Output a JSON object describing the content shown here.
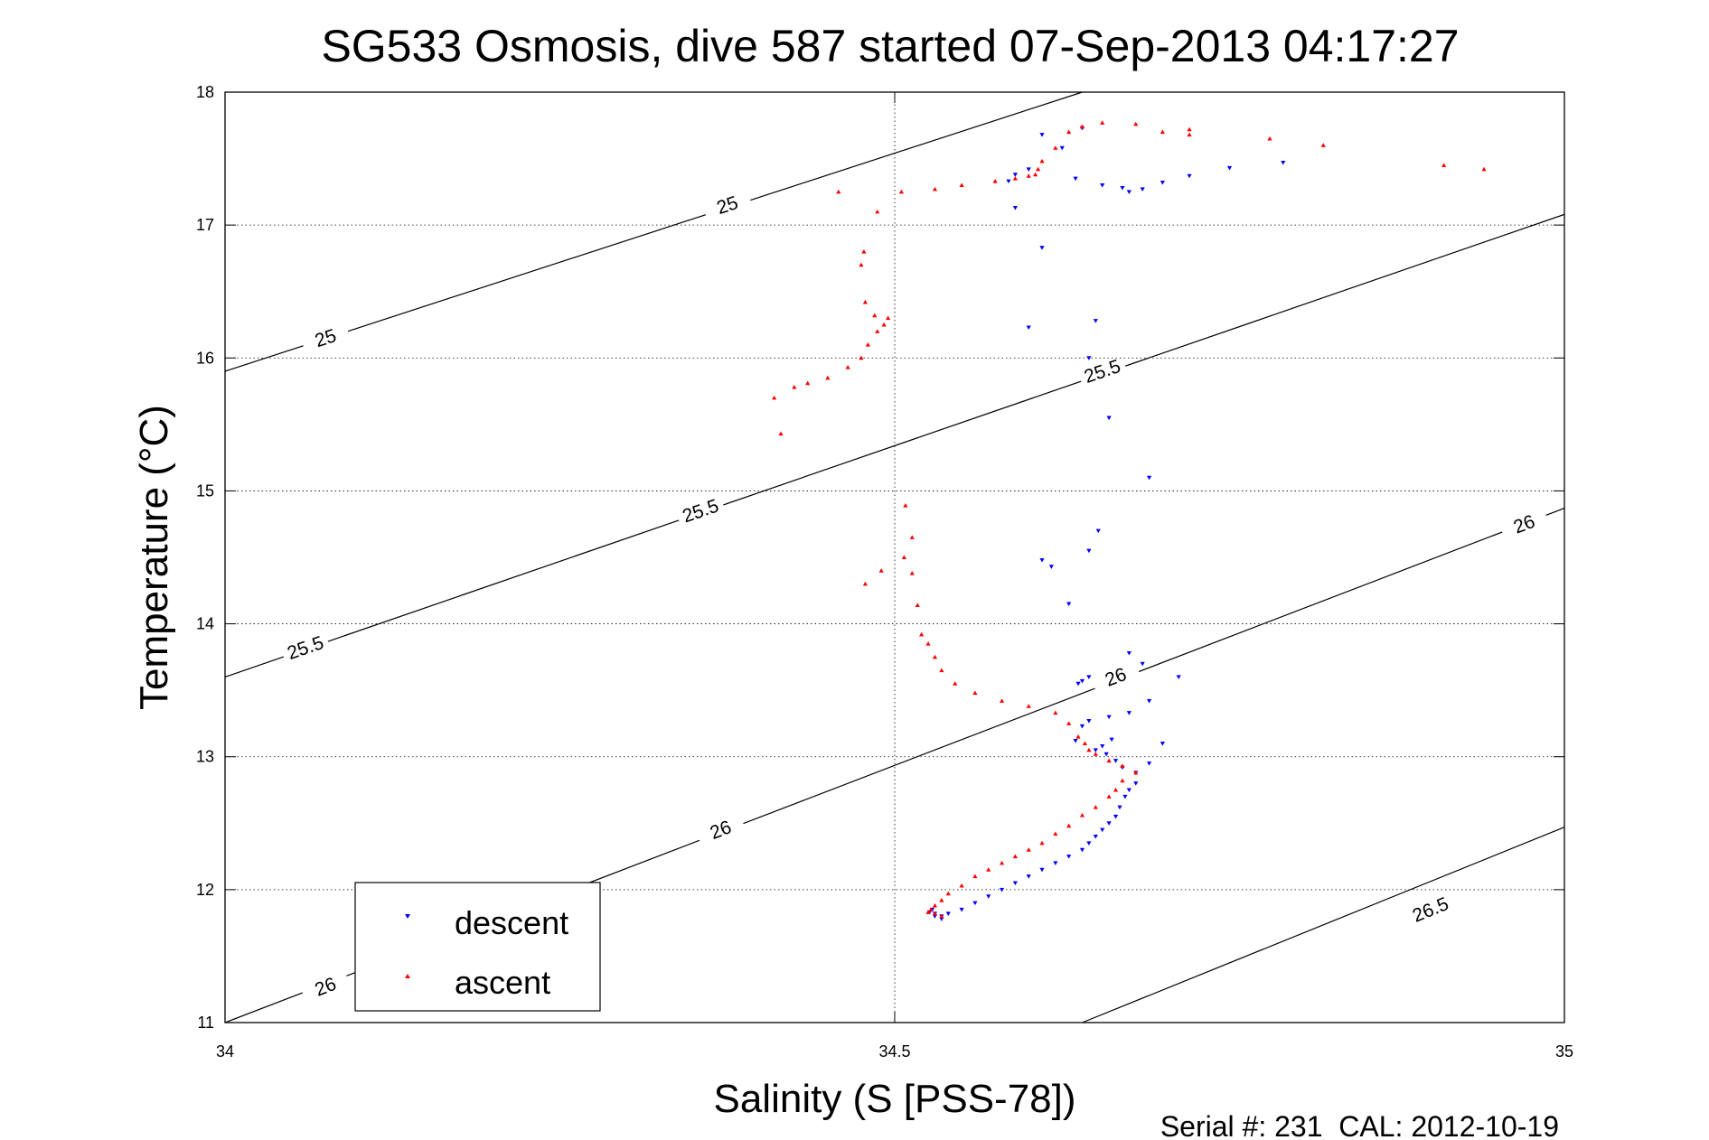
{
  "chart_data": {
    "type": "scatter",
    "title": "SG533 Osmosis, dive 587 started 07-Sep-2013 04:17:27",
    "xlabel": "Salinity (S [PSS-78])",
    "ylabel": "Temperature (°C)",
    "xlim": [
      34,
      35
    ],
    "ylim": [
      11,
      18
    ],
    "x_ticks": [
      "34",
      "34.5",
      "35"
    ],
    "y_ticks": [
      "11",
      "12",
      "13",
      "14",
      "15",
      "16",
      "17",
      "18"
    ],
    "grid": true,
    "legend_position": "bottom-left",
    "footer": "Serial #: 231  CAL: 2012-10-19",
    "contours": [
      {
        "level": "25",
        "lines": [
          [
            [
              34,
              15.9
            ],
            [
              34.64,
              18.0
            ]
          ]
        ],
        "labels": [
          [
            34.075,
            16.15
          ],
          [
            34.375,
            17.15
          ]
        ]
      },
      {
        "level": "25.5",
        "lines": [
          [
            [
              34,
              13.6
            ],
            [
              35,
              17.08
            ]
          ]
        ],
        "labels": [
          [
            34.06,
            13.82
          ],
          [
            34.355,
            14.85
          ],
          [
            34.655,
            15.9
          ]
        ]
      },
      {
        "level": "26",
        "lines": [
          [
            [
              34,
              11.0
            ],
            [
              35,
              14.87
            ]
          ]
        ],
        "labels": [
          [
            34.075,
            11.27
          ],
          [
            34.37,
            12.45
          ],
          [
            34.665,
            13.6
          ],
          [
            34.97,
            14.75
          ]
        ]
      },
      {
        "level": "26.5",
        "lines": [
          [
            [
              34.64,
              11.0
            ],
            [
              35,
              12.47
            ]
          ]
        ],
        "labels": [
          [
            34.9,
            11.85
          ]
        ]
      }
    ],
    "series": [
      {
        "name": "descent",
        "color": "#0000ff",
        "marker": "triangle-down",
        "x": [
          34.635,
          34.655,
          34.67,
          34.675,
          34.685,
          34.7,
          34.72,
          34.75,
          34.79,
          34.64,
          34.625,
          34.61,
          34.6,
          34.59,
          34.585,
          34.59,
          34.61,
          34.6,
          34.65,
          34.645,
          34.66,
          34.69,
          34.617,
          34.61,
          34.645,
          34.652,
          34.63,
          34.675,
          34.685,
          34.712,
          34.645,
          34.64,
          34.637,
          34.69,
          34.675,
          34.66,
          34.645,
          34.64,
          34.635,
          34.65,
          34.655,
          34.662,
          34.658,
          34.665,
          34.67,
          34.68,
          34.69,
          34.7,
          34.68,
          34.675,
          34.672,
          34.668,
          34.665,
          34.66,
          34.655,
          34.65,
          34.645,
          34.64,
          34.63,
          34.62,
          34.61,
          34.6,
          34.59,
          34.58,
          34.57,
          34.56,
          34.55,
          34.54,
          34.535,
          34.53,
          34.528,
          34.526,
          34.53,
          34.535
        ],
        "y": [
          17.35,
          17.3,
          17.28,
          17.25,
          17.27,
          17.32,
          17.37,
          17.43,
          17.47,
          17.73,
          17.58,
          17.68,
          17.42,
          17.38,
          17.33,
          17.13,
          16.83,
          16.23,
          16.28,
          16.0,
          15.55,
          15.1,
          14.43,
          14.48,
          14.55,
          14.7,
          14.15,
          13.78,
          13.7,
          13.6,
          13.6,
          13.57,
          13.55,
          13.42,
          13.33,
          13.3,
          13.27,
          13.23,
          13.12,
          13.05,
          13.08,
          13.13,
          13.02,
          12.97,
          12.92,
          12.88,
          12.95,
          13.1,
          12.8,
          12.75,
          12.7,
          12.62,
          12.55,
          12.5,
          12.45,
          12.4,
          12.35,
          12.3,
          12.25,
          12.2,
          12.15,
          12.1,
          12.05,
          12.0,
          11.95,
          11.9,
          11.85,
          11.82,
          11.8,
          11.82,
          11.85,
          11.83,
          11.8,
          11.78
        ]
      },
      {
        "name": "ascent",
        "color": "#ff0000",
        "marker": "triangle-up",
        "x": [
          34.91,
          34.94,
          34.82,
          34.78,
          34.72,
          34.72,
          34.7,
          34.68,
          34.655,
          34.64,
          34.63,
          34.62,
          34.61,
          34.607,
          34.605,
          34.6,
          34.59,
          34.575,
          34.55,
          34.53,
          34.505,
          34.458,
          34.487,
          34.477,
          34.475,
          34.478,
          34.485,
          34.495,
          34.492,
          34.487,
          34.48,
          34.475,
          34.465,
          34.45,
          34.435,
          34.425,
          34.41,
          34.415,
          34.508,
          34.513,
          34.507,
          34.49,
          34.478,
          34.513,
          34.517,
          34.52,
          34.525,
          34.53,
          34.535,
          34.545,
          34.56,
          34.58,
          34.6,
          34.62,
          34.63,
          34.637,
          34.642,
          34.645,
          34.65,
          34.66,
          34.67,
          34.68,
          34.67,
          34.665,
          34.66,
          34.65,
          34.64,
          34.63,
          34.62,
          34.61,
          34.6,
          34.59,
          34.58,
          34.57,
          34.56,
          34.55,
          34.54,
          34.535,
          34.53,
          34.527,
          34.525,
          34.53,
          34.535
        ],
        "y": [
          17.45,
          17.42,
          17.6,
          17.65,
          17.72,
          17.68,
          17.7,
          17.76,
          17.77,
          17.74,
          17.7,
          17.58,
          17.48,
          17.42,
          17.38,
          17.37,
          17.35,
          17.33,
          17.3,
          17.27,
          17.25,
          17.25,
          17.1,
          16.8,
          16.7,
          16.42,
          16.32,
          16.3,
          16.25,
          16.2,
          16.1,
          16.0,
          15.93,
          15.85,
          15.81,
          15.78,
          15.7,
          15.43,
          14.89,
          14.65,
          14.5,
          14.4,
          14.3,
          14.38,
          14.14,
          13.92,
          13.85,
          13.75,
          13.65,
          13.55,
          13.48,
          13.42,
          13.38,
          13.33,
          13.25,
          13.15,
          13.1,
          13.05,
          13.02,
          12.97,
          12.93,
          12.88,
          12.82,
          12.75,
          12.7,
          12.62,
          12.56,
          12.48,
          12.42,
          12.35,
          12.3,
          12.25,
          12.2,
          12.15,
          12.1,
          12.03,
          11.97,
          11.92,
          11.88,
          11.85,
          11.83,
          11.82,
          11.8
        ]
      }
    ]
  }
}
